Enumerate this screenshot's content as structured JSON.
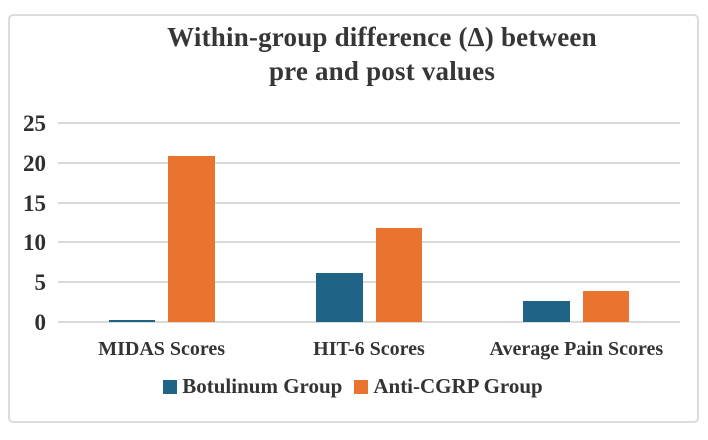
{
  "title": {
    "line1": "Within-group difference (Δ) between",
    "line2": "pre and post values"
  },
  "colors": {
    "botulinum": "#1f6386",
    "anti_cgrp": "#e8742f",
    "gridline": "#dadada",
    "frame_border": "#dcdcdc",
    "text": "#343434",
    "background": "#ffffff"
  },
  "chart_data": {
    "type": "bar",
    "title": "Within-group difference (Δ) between pre and post values",
    "categories": [
      "MIDAS Scores",
      "HIT-6 Scores",
      "Average Pain Scores"
    ],
    "series": [
      {
        "name": "Botulinum Group",
        "color_key": "botulinum",
        "values": [
          0.2,
          6.2,
          2.6
        ]
      },
      {
        "name": "Anti-CGRP Group",
        "color_key": "anti_cgrp",
        "values": [
          20.9,
          11.8,
          3.9
        ]
      }
    ],
    "xlabel": "",
    "ylabel": "",
    "y_ticks": [
      0,
      5,
      10,
      15,
      20,
      25
    ],
    "ylim": [
      0,
      25
    ],
    "grid": true,
    "legend_position": "bottom"
  }
}
